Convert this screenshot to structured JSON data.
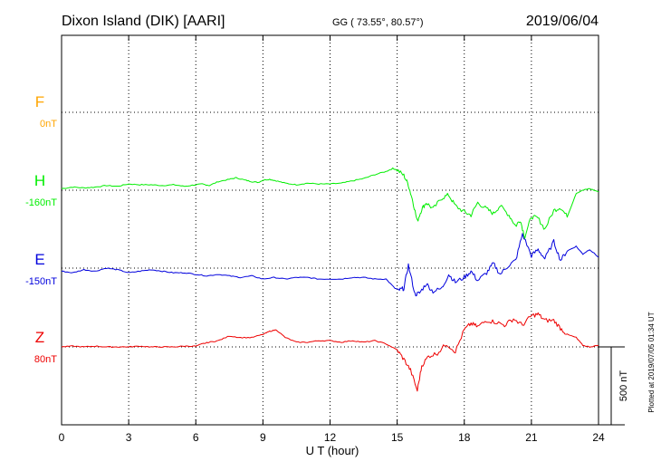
{
  "header": {
    "station": "Dixon Island (DIK)  [AARI]",
    "coords": "GG ( 73.55°,  80.57°)",
    "date": "2019/06/04"
  },
  "footer_note": "Plotted at 2019/07/05 01:34 UT",
  "chart_data": {
    "type": "line",
    "xlabel": "U T (hour)",
    "x_ticks": [
      0,
      3,
      6,
      9,
      12,
      15,
      18,
      21,
      24
    ],
    "xlim": [
      0,
      24
    ],
    "scale_bar_label": "500 nT",
    "grid": true,
    "series": [
      {
        "name": "F",
        "baseline_label": "0nT",
        "color": "#ffa500",
        "has_data": false,
        "x": [],
        "values": []
      },
      {
        "name": "H",
        "baseline_label": "-160nT",
        "color": "#00ee00",
        "has_data": true,
        "x": [
          0,
          0.5,
          1,
          1.5,
          2,
          2.5,
          3,
          3.5,
          4,
          4.5,
          5,
          5.5,
          6,
          6.3,
          6.6,
          7,
          7.5,
          7.8,
          8.2,
          8.5,
          8.8,
          9,
          9.3,
          9.6,
          10,
          10.5,
          11,
          11.5,
          12,
          12.5,
          13,
          13.5,
          14,
          14.5,
          14.8,
          15,
          15.3,
          15.5,
          15.7,
          15.9,
          16.1,
          16.3,
          16.6,
          17,
          17.3,
          17.6,
          18,
          18.3,
          18.6,
          19,
          19.3,
          19.6,
          20,
          20.3,
          20.5,
          20.7,
          21,
          21.3,
          21.6,
          22,
          22.3,
          22.6,
          23,
          23.3,
          23.6,
          24
        ],
        "values": [
          10,
          20,
          15,
          20,
          30,
          25,
          40,
          35,
          35,
          30,
          35,
          25,
          35,
          40,
          30,
          55,
          70,
          80,
          65,
          55,
          50,
          65,
          70,
          60,
          45,
          35,
          45,
          40,
          40,
          45,
          60,
          75,
          100,
          120,
          140,
          130,
          95,
          35,
          -70,
          -200,
          -120,
          -80,
          -120,
          -50,
          -30,
          -100,
          -140,
          -160,
          -80,
          -120,
          -150,
          -100,
          -160,
          -230,
          -190,
          -300,
          -170,
          -180,
          -250,
          -130,
          -110,
          -170,
          -20,
          0,
          10,
          -10
        ],
        "unit": "nT"
      },
      {
        "name": "E",
        "baseline_label": "-150nT",
        "color": "#0000dd",
        "has_data": true,
        "x": [
          0,
          0.5,
          1,
          1.5,
          2,
          2.5,
          3,
          3.5,
          4,
          4.5,
          5,
          5.5,
          6,
          6.5,
          7,
          7.5,
          8,
          8.5,
          9,
          9.5,
          10,
          10.5,
          11,
          11.5,
          12,
          12.5,
          13,
          13.5,
          14,
          14.5,
          14.9,
          15.1,
          15.3,
          15.5,
          15.8,
          16,
          16.3,
          16.6,
          17,
          17.3,
          17.6,
          18,
          18.3,
          18.6,
          19,
          19.3,
          19.6,
          20,
          20.3,
          20.6,
          21,
          21.3,
          21.6,
          22,
          22.3,
          22.6,
          23,
          23.3,
          23.6,
          24
        ],
        "values": [
          -20,
          -30,
          -10,
          -20,
          0,
          -10,
          -30,
          -20,
          -10,
          -20,
          -30,
          -30,
          -40,
          -50,
          -40,
          -50,
          -60,
          -50,
          -70,
          -60,
          -70,
          -60,
          -60,
          -70,
          -70,
          -70,
          -60,
          -60,
          -70,
          -70,
          -130,
          -140,
          -130,
          20,
          -170,
          -160,
          -100,
          -150,
          -130,
          -40,
          -90,
          -60,
          -20,
          -80,
          -30,
          30,
          -40,
          20,
          50,
          220,
          80,
          120,
          60,
          170,
          50,
          110,
          140,
          90,
          120,
          70
        ],
        "unit": "nT"
      },
      {
        "name": "Z",
        "baseline_label": "80nT",
        "color": "#ee0000",
        "has_data": true,
        "x": [
          0,
          0.5,
          1,
          1.5,
          2,
          2.5,
          3,
          3.5,
          4,
          4.5,
          5,
          5.5,
          6,
          6.3,
          6.6,
          7,
          7.5,
          8,
          8.5,
          9,
          9.3,
          9.6,
          10,
          10.5,
          11,
          11.5,
          12,
          12.5,
          13,
          13.5,
          14,
          14.5,
          15,
          15.3,
          15.6,
          15.9,
          16.1,
          16.4,
          16.8,
          17.2,
          17.6,
          18,
          18.3,
          18.6,
          19,
          19.4,
          19.8,
          20.2,
          20.6,
          21,
          21.3,
          21.6,
          22,
          22.3,
          22.6,
          23,
          23.3,
          23.6,
          24
        ],
        "values": [
          0,
          5,
          0,
          5,
          0,
          0,
          0,
          5,
          0,
          0,
          0,
          5,
          5,
          20,
          30,
          40,
          70,
          60,
          60,
          80,
          100,
          110,
          60,
          30,
          30,
          40,
          40,
          30,
          40,
          30,
          40,
          20,
          -20,
          -80,
          -150,
          -280,
          -120,
          -60,
          -40,
          20,
          -30,
          110,
          150,
          130,
          170,
          160,
          140,
          180,
          140,
          200,
          210,
          170,
          170,
          120,
          80,
          60,
          10,
          0,
          10
        ],
        "unit": "nT"
      }
    ]
  }
}
